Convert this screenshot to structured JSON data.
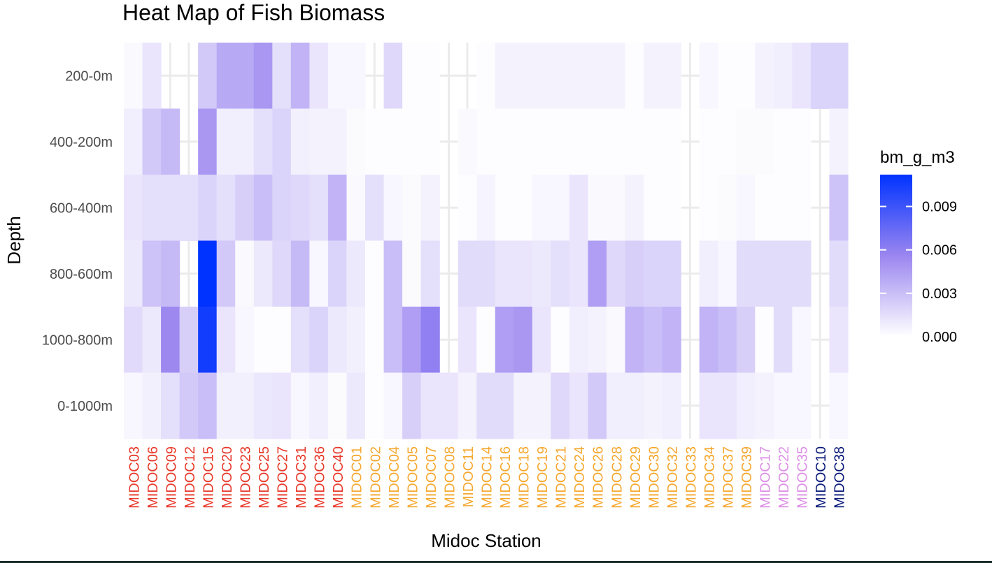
{
  "chart_data": {
    "type": "heatmap",
    "title": "Heat Map of Fish Biomass",
    "xlabel": "Midoc Station",
    "ylabel": "Depth",
    "legend": {
      "title": "bm_g_m3",
      "ticks": [
        "0.000",
        "0.003",
        "0.006",
        "0.009"
      ],
      "tick_values": [
        0,
        0.003,
        0.006,
        0.009
      ],
      "placement": "right"
    },
    "color_scale": {
      "low": "#ffffff",
      "mid": "#9b86f0",
      "high": "#0033ff",
      "max": 0.0112
    },
    "grid": true,
    "stations": [
      {
        "name": "MIDOC03",
        "color": "#e8392b"
      },
      {
        "name": "MIDOC06",
        "color": "#e8392b"
      },
      {
        "name": "MIDOC09",
        "color": "#e8392b"
      },
      {
        "name": "MIDOC12",
        "color": "#e8392b"
      },
      {
        "name": "MIDOC15",
        "color": "#e8392b"
      },
      {
        "name": "MIDOC20",
        "color": "#e8392b"
      },
      {
        "name": "MIDOC23",
        "color": "#e8392b"
      },
      {
        "name": "MIDOC25",
        "color": "#e8392b"
      },
      {
        "name": "MIDOC27",
        "color": "#e8392b"
      },
      {
        "name": "MIDOC31",
        "color": "#e8392b"
      },
      {
        "name": "MIDOC36",
        "color": "#e8392b"
      },
      {
        "name": "MIDOC40",
        "color": "#e8392b"
      },
      {
        "name": "MIDOC01",
        "color": "#f5a830"
      },
      {
        "name": "MIDOC02",
        "color": "#f5a830"
      },
      {
        "name": "MIDOC04",
        "color": "#f5a830"
      },
      {
        "name": "MIDOC05",
        "color": "#f5a830"
      },
      {
        "name": "MIDOC07",
        "color": "#f5a830"
      },
      {
        "name": "MIDOC08",
        "color": "#f5a830"
      },
      {
        "name": "MIDOC11",
        "color": "#f5a830"
      },
      {
        "name": "MIDOC14",
        "color": "#f5a830"
      },
      {
        "name": "MIDOC16",
        "color": "#f5a830"
      },
      {
        "name": "MIDOC18",
        "color": "#f5a830"
      },
      {
        "name": "MIDOC19",
        "color": "#f5a830"
      },
      {
        "name": "MIDOC21",
        "color": "#f5a830"
      },
      {
        "name": "MIDOC24",
        "color": "#f5a830"
      },
      {
        "name": "MIDOC26",
        "color": "#f5a830"
      },
      {
        "name": "MIDOC28",
        "color": "#f5a830"
      },
      {
        "name": "MIDOC29",
        "color": "#f5a830"
      },
      {
        "name": "MIDOC30",
        "color": "#f5a830"
      },
      {
        "name": "MIDOC32",
        "color": "#f5a830"
      },
      {
        "name": "MIDOC33",
        "color": "#f5a830"
      },
      {
        "name": "MIDOC34",
        "color": "#f5a830"
      },
      {
        "name": "MIDOC37",
        "color": "#f5a830"
      },
      {
        "name": "MIDOC39",
        "color": "#f5a830"
      },
      {
        "name": "MIDOC17",
        "color": "#dd8ee6"
      },
      {
        "name": "MIDOC22",
        "color": "#dd8ee6"
      },
      {
        "name": "MIDOC35",
        "color": "#dd8ee6"
      },
      {
        "name": "MIDOC10",
        "color": "#0a1a7a"
      },
      {
        "name": "MIDOC38",
        "color": "#0a1a7a"
      }
    ],
    "depths": [
      "200-0m",
      "400-200m",
      "600-400m",
      "800-600m",
      "1000-800m",
      "0-1000m"
    ],
    "values": [
      [
        0.0003,
        0.0008,
        0.0012,
        0.001,
        0.0017,
        0.0004
      ],
      [
        0.0012,
        0.0025,
        0.0015,
        0.0028,
        0.001,
        0.0007
      ],
      [
        null,
        0.0032,
        0.0015,
        0.0032,
        0.0055,
        0.0015
      ],
      [
        null,
        null,
        0.0015,
        null,
        0.0022,
        0.0025
      ],
      [
        0.0025,
        0.0048,
        0.002,
        0.0112,
        0.0105,
        0.003
      ],
      [
        0.004,
        0.0008,
        0.0015,
        0.0025,
        0.0012,
        0.0007
      ],
      [
        0.004,
        0.0008,
        0.0022,
        0.0003,
        0.0004,
        0.0007
      ],
      [
        0.0048,
        0.0015,
        0.003,
        0.001,
        0.0001,
        0.0011
      ],
      [
        0.0015,
        0.002,
        0.002,
        0.0018,
        0.0001,
        0.0012
      ],
      [
        0.0035,
        0.0007,
        0.0018,
        0.0032,
        0.0015,
        0.0004
      ],
      [
        0.0012,
        0.0006,
        0.0015,
        0.0004,
        0.002,
        0.0008
      ],
      [
        0.0004,
        0.0006,
        0.0035,
        0.002,
        0.001,
        0.0002
      ],
      [
        0.0004,
        0.0002,
        0.0003,
        0.001,
        0.0007,
        0.001
      ],
      [
        null,
        0.0001,
        0.0015,
        0.0001,
        0.0001,
        0.0001
      ],
      [
        0.0018,
        0.0001,
        0.0004,
        0.003,
        0.003,
        0.0004
      ],
      [
        0.0001,
        0.0001,
        0.0002,
        0.0002,
        0.0045,
        0.0022
      ],
      [
        0.0001,
        0.0001,
        0.0006,
        0.0015,
        0.006,
        0.0012
      ],
      [
        null,
        null,
        null,
        null,
        null,
        0.0012
      ],
      [
        null,
        0.0003,
        0.0001,
        0.0016,
        0.0012,
        0.0006
      ],
      [
        0.0001,
        0.0001,
        0.0005,
        0.0016,
        0.0001,
        0.0016
      ],
      [
        0.0006,
        0.0001,
        0.0001,
        0.0012,
        0.0045,
        0.0016
      ],
      [
        0.0006,
        0.0001,
        0.0001,
        0.0012,
        0.0048,
        0.0006
      ],
      [
        0.0006,
        0.0001,
        0.0004,
        0.001,
        0.0012,
        0.0006
      ],
      [
        0.0006,
        0.0001,
        0.0004,
        0.0015,
        0.0001,
        0.0018
      ],
      [
        0.0006,
        0.0001,
        0.0012,
        0.0012,
        0.0008,
        0.0012
      ],
      [
        0.0006,
        0.0001,
        0.0003,
        0.0045,
        0.0006,
        0.0025
      ],
      [
        0.0006,
        0.0001,
        0.0003,
        0.0018,
        0.0003,
        0.0008
      ],
      [
        0.0001,
        0.0001,
        0.0006,
        0.0022,
        0.0035,
        0.0008
      ],
      [
        0.0006,
        0.0001,
        0.0001,
        0.002,
        0.003,
        0.0006
      ],
      [
        0.0006,
        0.0001,
        0.0001,
        0.002,
        0.0035,
        0.0008
      ],
      [
        null,
        null,
        null,
        null,
        null,
        null
      ],
      [
        0.0004,
        0.0001,
        0.0001,
        0.0008,
        0.0035,
        0.0012
      ],
      [
        0.0001,
        0.0001,
        0.0002,
        0.0004,
        0.003,
        0.0012
      ],
      [
        0.0001,
        0.0002,
        0.0004,
        0.0016,
        0.0022,
        0.0008
      ],
      [
        0.0006,
        0.0002,
        0.0001,
        0.0016,
        0.0001,
        0.0006
      ],
      [
        0.0008,
        0.0001,
        0.0001,
        0.0016,
        0.0016,
        0.0004
      ],
      [
        0.0012,
        0.0001,
        0.0001,
        0.0016,
        0.0004,
        0.0004
      ],
      [
        0.002,
        null,
        null,
        null,
        null,
        null
      ],
      [
        0.002,
        0.0006,
        0.0028,
        0.0016,
        0.0012,
        0.0004
      ]
    ]
  }
}
